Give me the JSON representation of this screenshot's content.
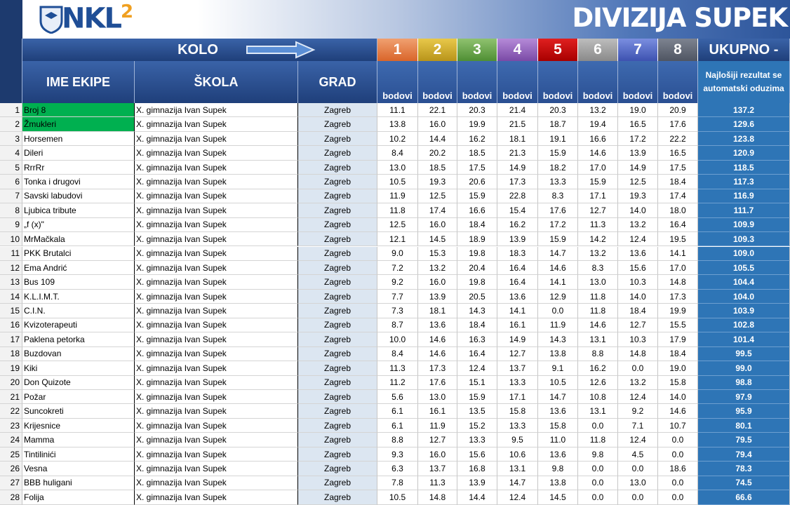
{
  "header": {
    "logo": "NKL",
    "logo_sup": "2",
    "title": "DIVIZIJA SUPEK",
    "round_label": "KOLO",
    "rounds": [
      "1",
      "2",
      "3",
      "4",
      "5",
      "6",
      "7",
      "8"
    ],
    "total_label": "UKUPNO -",
    "columns": [
      "IME EKIPE",
      "ŠKOLA",
      "GRAD"
    ],
    "points_labels": [
      "bodovi",
      "bodovi",
      "bodovi",
      "bodovi",
      "bodovi",
      "bodovi",
      "bodovi",
      "bodovi"
    ],
    "total_note": "Najlošiji rezultat se automatski oduzima"
  },
  "table": {
    "rows": [
      [
        1,
        "Broj 8",
        "X. gimnazija Ivan Supek",
        "Zagreb",
        "11.1",
        "22.1",
        "20.3",
        "21.4",
        "20.3",
        "13.2",
        "19.0",
        "20.9",
        "137.2"
      ],
      [
        2,
        "Žmukleri",
        "X. gimnazija Ivan Supek",
        "Zagreb",
        "13.8",
        "16.0",
        "19.9",
        "21.5",
        "18.7",
        "19.4",
        "16.5",
        "17.6",
        "129.6"
      ],
      [
        3,
        "Horsemen",
        "X. gimnazija Ivan Supek",
        "Zagreb",
        "10.2",
        "14.4",
        "16.2",
        "18.1",
        "19.1",
        "16.6",
        "17.2",
        "22.2",
        "123.8"
      ],
      [
        4,
        "Dileri",
        "X. gimnazija Ivan Supek",
        "Zagreb",
        "8.4",
        "20.2",
        "18.5",
        "21.3",
        "15.9",
        "14.6",
        "13.9",
        "16.5",
        "120.9"
      ],
      [
        5,
        "RrrRr",
        "X. gimnazija Ivan Supek",
        "Zagreb",
        "13.0",
        "18.5",
        "17.5",
        "14.9",
        "18.2",
        "17.0",
        "14.9",
        "17.5",
        "118.5"
      ],
      [
        6,
        "Tonka i drugovi",
        "X. gimnazija Ivan Supek",
        "Zagreb",
        "10.5",
        "19.3",
        "20.6",
        "17.3",
        "13.3",
        "15.9",
        "12.5",
        "18.4",
        "117.3"
      ],
      [
        7,
        "Savski labudovi",
        "X. gimnazija Ivan Supek",
        "Zagreb",
        "11.9",
        "12.5",
        "15.9",
        "22.8",
        "8.3",
        "17.1",
        "19.3",
        "17.4",
        "116.9"
      ],
      [
        8,
        "Ljubica tribute",
        "X. gimnazija Ivan Supek",
        "Zagreb",
        "11.8",
        "17.4",
        "16.6",
        "15.4",
        "17.6",
        "12.7",
        "14.0",
        "18.0",
        "111.7"
      ],
      [
        9,
        "„f (x)\"",
        "X. gimnazija Ivan Supek",
        "Zagreb",
        "12.5",
        "16.0",
        "18.4",
        "16.2",
        "17.2",
        "11.3",
        "13.2",
        "16.4",
        "109.9"
      ],
      [
        10,
        "MrMačkala",
        "X. gimnazija Ivan Supek",
        "Zagreb",
        "12.1",
        "14.5",
        "18.9",
        "13.9",
        "15.9",
        "14.2",
        "12.4",
        "19.5",
        "109.3"
      ],
      [
        11,
        "PKK Brutalci",
        "X. gimnazija Ivan Supek",
        "Zagreb",
        "9.0",
        "15.3",
        "19.8",
        "18.3",
        "14.7",
        "13.2",
        "13.6",
        "14.1",
        "109.0"
      ],
      [
        12,
        "Ema Andrić",
        "X. gimnazija Ivan Supek",
        "Zagreb",
        "7.2",
        "13.2",
        "20.4",
        "16.4",
        "14.6",
        "8.3",
        "15.6",
        "17.0",
        "105.5"
      ],
      [
        13,
        "Bus 109",
        "X. gimnazija Ivan Supek",
        "Zagreb",
        "9.2",
        "16.0",
        "19.8",
        "16.4",
        "14.1",
        "13.0",
        "10.3",
        "14.8",
        "104.4"
      ],
      [
        14,
        "K.L.I.M.T.",
        "X. gimnazija Ivan Supek",
        "Zagreb",
        "7.7",
        "13.9",
        "20.5",
        "13.6",
        "12.9",
        "11.8",
        "14.0",
        "17.3",
        "104.0"
      ],
      [
        15,
        "C.I.N.",
        "X. gimnazija Ivan Supek",
        "Zagreb",
        "7.3",
        "18.1",
        "14.3",
        "14.1",
        "0.0",
        "11.8",
        "18.4",
        "19.9",
        "103.9"
      ],
      [
        16,
        "Kvizoterapeuti",
        "X. gimnazija Ivan Supek",
        "Zagreb",
        "8.7",
        "13.6",
        "18.4",
        "16.1",
        "11.9",
        "14.6",
        "12.7",
        "15.5",
        "102.8"
      ],
      [
        17,
        "Paklena petorka",
        "X. gimnazija Ivan Supek",
        "Zagreb",
        "10.0",
        "14.6",
        "16.3",
        "14.9",
        "14.3",
        "13.1",
        "10.3",
        "17.9",
        "101.4"
      ],
      [
        18,
        "Buzdovan",
        "X. gimnazija Ivan Supek",
        "Zagreb",
        "8.4",
        "14.6",
        "16.4",
        "12.7",
        "13.8",
        "8.8",
        "14.8",
        "18.4",
        "99.5"
      ],
      [
        19,
        "Kiki",
        "X. gimnazija Ivan Supek",
        "Zagreb",
        "11.3",
        "17.3",
        "12.4",
        "13.7",
        "9.1",
        "16.2",
        "0.0",
        "19.0",
        "99.0"
      ],
      [
        20,
        "Don Quizote",
        "X. gimnazija Ivan Supek",
        "Zagreb",
        "11.2",
        "17.6",
        "15.1",
        "13.3",
        "10.5",
        "12.6",
        "13.2",
        "15.8",
        "98.8"
      ],
      [
        21,
        "Požar",
        "X. gimnazija Ivan Supek",
        "Zagreb",
        "5.6",
        "13.0",
        "15.9",
        "17.1",
        "14.7",
        "10.8",
        "12.4",
        "14.0",
        "97.9"
      ],
      [
        22,
        "Suncokreti",
        "X. gimnazija Ivan Supek",
        "Zagreb",
        "6.1",
        "16.1",
        "13.5",
        "15.8",
        "13.6",
        "13.1",
        "9.2",
        "14.6",
        "95.9"
      ],
      [
        23,
        "Krijesnice",
        "X. gimnazija Ivan Supek",
        "Zagreb",
        "6.1",
        "11.9",
        "15.2",
        "13.3",
        "15.8",
        "0.0",
        "7.1",
        "10.7",
        "80.1"
      ],
      [
        24,
        "Mamma",
        "X. gimnazija Ivan Supek",
        "Zagreb",
        "8.8",
        "12.7",
        "13.3",
        "9.5",
        "11.0",
        "11.8",
        "12.4",
        "0.0",
        "79.5"
      ],
      [
        25,
        "Tintilinići",
        "X. gimnazija Ivan Supek",
        "Zagreb",
        "9.3",
        "16.0",
        "15.6",
        "10.6",
        "13.6",
        "9.8",
        "4.5",
        "0.0",
        "79.4"
      ],
      [
        26,
        "Vesna",
        "X. gimnazija Ivan Supek",
        "Zagreb",
        "6.3",
        "13.7",
        "16.8",
        "13.1",
        "9.8",
        "0.0",
        "0.0",
        "18.6",
        "78.3"
      ],
      [
        27,
        "BBB huligani",
        "X. gimnazija Ivan Supek",
        "Zagreb",
        "7.8",
        "11.3",
        "13.9",
        "14.7",
        "13.8",
        "0.0",
        "13.0",
        "0.0",
        "74.5"
      ],
      [
        28,
        "Folija",
        "X. gimnazija Ivan Supek",
        "Zagreb",
        "10.5",
        "14.8",
        "14.4",
        "12.4",
        "14.5",
        "0.0",
        "0.0",
        "0.0",
        "66.6"
      ]
    ]
  }
}
